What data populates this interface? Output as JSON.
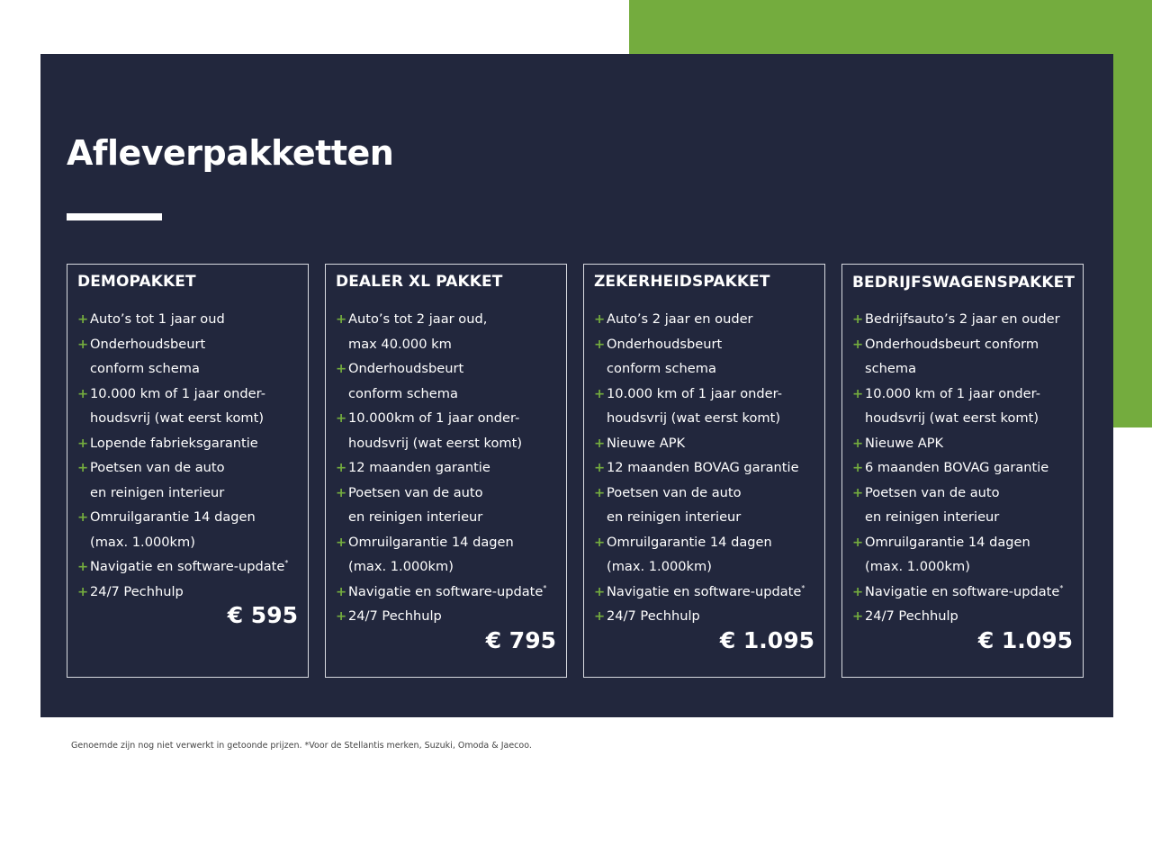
{
  "colors": {
    "navy": "#22273d",
    "green": "#74ac3e"
  },
  "title": "Afleverpakketten",
  "cards": [
    {
      "name": "DEMOPAKKET",
      "price": "€ 595",
      "items": [
        {
          "text": "Auto’s tot 1 jaar oud"
        },
        {
          "text": "Onderhoudsbeurt\nconform schema"
        },
        {
          "text": "10.000 km of 1 jaar onder-\nhoudsvrij (wat eerst komt)"
        },
        {
          "text": "Lopende fabrieksgarantie"
        },
        {
          "text": "Poetsen van de auto\nen reinigen interieur"
        },
        {
          "text": "Omruilgarantie 14 dagen\n(max. 1.000km)"
        },
        {
          "text": "Navigatie en software-update",
          "sup": "*"
        },
        {
          "text": "24/7 Pechhulp"
        }
      ]
    },
    {
      "name": "DEALER XL PAKKET",
      "price": "€ 795",
      "items": [
        {
          "text": "Auto’s tot 2 jaar oud,\nmax 40.000 km"
        },
        {
          "text": "Onderhoudsbeurt\nconform schema"
        },
        {
          "text": "10.000km of 1 jaar onder-\nhoudsvrij (wat eerst komt)"
        },
        {
          "text": "12 maanden garantie"
        },
        {
          "text": "Poetsen van de auto\nen reinigen interieur"
        },
        {
          "text": "Omruilgarantie 14 dagen\n(max. 1.000km)"
        },
        {
          "text": "Navigatie en software-update",
          "sup": "*"
        },
        {
          "text": "24/7 Pechhulp"
        }
      ]
    },
    {
      "name": "ZEKERHEIDSPAKKET",
      "price": "€ 1.095",
      "items": [
        {
          "text": "Auto’s 2 jaar en ouder"
        },
        {
          "text": "Onderhoudsbeurt\nconform schema"
        },
        {
          "text": "10.000 km of 1 jaar onder-\nhoudsvrij (wat eerst komt)"
        },
        {
          "text": "Nieuwe APK"
        },
        {
          "text": "12 maanden BOVAG garantie"
        },
        {
          "text": "Poetsen van de auto\nen reinigen interieur"
        },
        {
          "text": "Omruilgarantie 14 dagen\n(max. 1.000km)"
        },
        {
          "text": "Navigatie en software-update",
          "sup": "*"
        },
        {
          "text": "24/7 Pechhulp"
        }
      ]
    },
    {
      "name": "BEDRIJFSWAGENSPAKKET",
      "price": "€ 1.095",
      "items": [
        {
          "text": "Bedrijfsauto’s 2 jaar en ouder"
        },
        {
          "text": "Onderhoudsbeurt conform\nschema"
        },
        {
          "text": "10.000 km of 1 jaar onder-\nhoudsvrij (wat eerst komt)"
        },
        {
          "text": "Nieuwe APK"
        },
        {
          "text": "6 maanden BOVAG garantie"
        },
        {
          "text": "Poetsen van de auto\nen reinigen interieur"
        },
        {
          "text": "Omruilgarantie 14 dagen\n(max. 1.000km)"
        },
        {
          "text": "Navigatie en software-update",
          "sup": "*"
        },
        {
          "text": "24/7 Pechhulp"
        }
      ]
    }
  ],
  "footnote": "Genoemde zijn nog niet verwerkt in getoonde prijzen. *Voor de Stellantis merken, Suzuki, Omoda & Jaecoo.",
  "plus_symbol": "+"
}
